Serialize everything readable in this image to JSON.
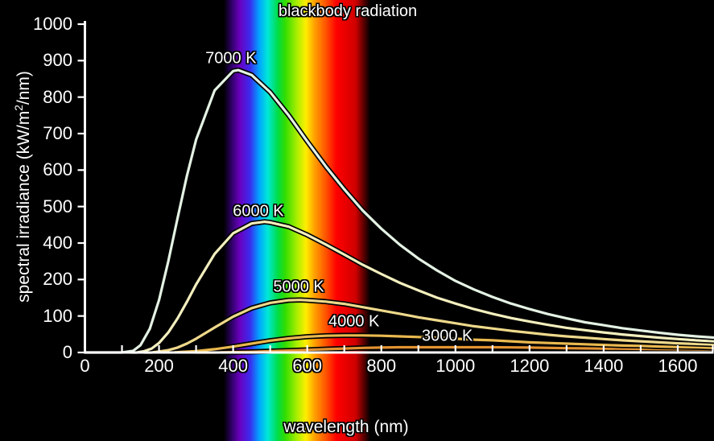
{
  "chart_data": {
    "type": "line",
    "title": "blackbody radiation",
    "xlabel": "wavelength (nm)",
    "ylabel_prefix": "spectral irradiance (kW/m",
    "ylabel_sup": "2",
    "ylabel_suffix": "/nm)",
    "axis_color": "#ffffff",
    "background_color": "#000000",
    "x_axis": {
      "min": 0,
      "max": 1700,
      "tick_step_nm": 100,
      "labeled_tick_step_nm": 200,
      "tick_labels": [
        "0",
        "200",
        "400",
        "600",
        "800",
        "1000",
        "1200",
        "1400",
        "1600"
      ]
    },
    "y_axis": {
      "min": 0,
      "max": 1000,
      "tick_labels_top_to_bottom": [
        "1000",
        "900",
        "800",
        "700",
        "600",
        "500",
        "400",
        "200",
        "100",
        "0"
      ]
    },
    "visible_spectrum_band": {
      "start_nm": 375,
      "end_nm": 770,
      "gradient_stops": [
        {
          "at": 0.0,
          "color": "#000000"
        },
        {
          "at": 0.05,
          "color": "#2b0060"
        },
        {
          "at": 0.11,
          "color": "#6a00c0"
        },
        {
          "at": 0.18,
          "color": "#3a2cee"
        },
        {
          "at": 0.24,
          "color": "#00a2ff"
        },
        {
          "at": 0.3,
          "color": "#00e8d8"
        },
        {
          "at": 0.37,
          "color": "#00dd44"
        },
        {
          "at": 0.42,
          "color": "#33dd00"
        },
        {
          "at": 0.5,
          "color": "#aaee00"
        },
        {
          "at": 0.56,
          "color": "#ffee00"
        },
        {
          "at": 0.62,
          "color": "#ffa000"
        },
        {
          "at": 0.7,
          "color": "#ff5000"
        },
        {
          "at": 0.77,
          "color": "#ff0000"
        },
        {
          "at": 0.9,
          "color": "#d00000"
        },
        {
          "at": 0.96,
          "color": "#500000"
        },
        {
          "at": 1.0,
          "color": "#000000"
        }
      ]
    },
    "series": [
      {
        "name": "3000 K",
        "temperature_K": 3000,
        "color": "#e29232",
        "peak_nm": 966,
        "peak_value": 16,
        "points": [
          [
            0,
            0
          ],
          [
            350,
            0
          ],
          [
            400,
            1
          ],
          [
            450,
            2
          ],
          [
            500,
            4
          ],
          [
            550,
            6
          ],
          [
            600,
            8
          ],
          [
            650,
            10
          ],
          [
            700,
            12
          ],
          [
            750,
            14
          ],
          [
            800,
            15
          ],
          [
            850,
            16
          ],
          [
            900,
            16
          ],
          [
            950,
            16
          ],
          [
            1000,
            16
          ],
          [
            1100,
            16
          ],
          [
            1200,
            15
          ],
          [
            1300,
            13
          ],
          [
            1400,
            12
          ],
          [
            1500,
            11
          ],
          [
            1600,
            10
          ],
          [
            1700,
            9
          ]
        ]
      },
      {
        "name": "4000 K",
        "temperature_K": 4000,
        "color": "#e9b94f",
        "peak_nm": 725,
        "peak_value": 52,
        "points": [
          [
            0,
            0
          ],
          [
            250,
            1
          ],
          [
            300,
            4
          ],
          [
            350,
            10
          ],
          [
            400,
            18
          ],
          [
            450,
            27
          ],
          [
            500,
            36
          ],
          [
            550,
            43
          ],
          [
            600,
            48
          ],
          [
            650,
            51
          ],
          [
            700,
            52
          ],
          [
            750,
            52
          ],
          [
            800,
            51
          ],
          [
            850,
            49
          ],
          [
            900,
            47
          ],
          [
            950,
            45
          ],
          [
            1000,
            42
          ],
          [
            1050,
            39
          ],
          [
            1100,
            37
          ],
          [
            1150,
            34
          ],
          [
            1200,
            31
          ],
          [
            1250,
            29
          ],
          [
            1300,
            27
          ],
          [
            1350,
            25
          ],
          [
            1400,
            23
          ],
          [
            1450,
            21
          ],
          [
            1500,
            20
          ],
          [
            1550,
            18
          ],
          [
            1600,
            17
          ],
          [
            1650,
            16
          ],
          [
            1700,
            14
          ]
        ]
      },
      {
        "name": "5000 K",
        "temperature_K": 5000,
        "color": "#eed98b",
        "peak_nm": 580,
        "peak_value": 160,
        "points": [
          [
            0,
            0
          ],
          [
            180,
            0
          ],
          [
            200,
            3
          ],
          [
            225,
            7
          ],
          [
            250,
            15
          ],
          [
            275,
            27
          ],
          [
            300,
            42
          ],
          [
            350,
            76
          ],
          [
            400,
            109
          ],
          [
            450,
            135
          ],
          [
            500,
            151
          ],
          [
            550,
            159
          ],
          [
            580,
            160
          ],
          [
            600,
            159
          ],
          [
            650,
            155
          ],
          [
            700,
            148
          ],
          [
            750,
            138
          ],
          [
            800,
            128
          ],
          [
            850,
            118
          ],
          [
            900,
            107
          ],
          [
            950,
            98
          ],
          [
            1000,
            89
          ],
          [
            1050,
            80
          ],
          [
            1100,
            73
          ],
          [
            1150,
            66
          ],
          [
            1200,
            60
          ],
          [
            1250,
            54
          ],
          [
            1300,
            49
          ],
          [
            1350,
            45
          ],
          [
            1400,
            41
          ],
          [
            1450,
            37
          ],
          [
            1500,
            34
          ],
          [
            1550,
            31
          ],
          [
            1600,
            28
          ],
          [
            1650,
            26
          ],
          [
            1700,
            24
          ]
        ]
      },
      {
        "name": "6000 K",
        "temperature_K": 6000,
        "color": "#f3efbe",
        "peak_nm": 483,
        "peak_value": 398,
        "points": [
          [
            0,
            0
          ],
          [
            140,
            0
          ],
          [
            160,
            4
          ],
          [
            180,
            12
          ],
          [
            200,
            29
          ],
          [
            225,
            61
          ],
          [
            250,
            104
          ],
          [
            275,
            154
          ],
          [
            300,
            207
          ],
          [
            350,
            300
          ],
          [
            400,
            363
          ],
          [
            450,
            393
          ],
          [
            485,
            398
          ],
          [
            500,
            396
          ],
          [
            550,
            383
          ],
          [
            600,
            358
          ],
          [
            650,
            329
          ],
          [
            700,
            298
          ],
          [
            750,
            267
          ],
          [
            800,
            239
          ],
          [
            850,
            212
          ],
          [
            900,
            189
          ],
          [
            950,
            167
          ],
          [
            1000,
            149
          ],
          [
            1050,
            132
          ],
          [
            1100,
            118
          ],
          [
            1150,
            105
          ],
          [
            1200,
            94
          ],
          [
            1250,
            84
          ],
          [
            1300,
            75
          ],
          [
            1350,
            68
          ],
          [
            1400,
            61
          ],
          [
            1450,
            55
          ],
          [
            1500,
            50
          ],
          [
            1550,
            45
          ],
          [
            1600,
            41
          ],
          [
            1650,
            37
          ],
          [
            1700,
            34
          ]
        ]
      },
      {
        "name": "7000 K",
        "temperature_K": 7000,
        "color": "#e4f2e4",
        "peak_nm": 414,
        "peak_value": 860,
        "points": [
          [
            0,
            0
          ],
          [
            100,
            0
          ],
          [
            130,
            5
          ],
          [
            150,
            22
          ],
          [
            175,
            72
          ],
          [
            200,
            160
          ],
          [
            225,
            278
          ],
          [
            250,
            409
          ],
          [
            275,
            537
          ],
          [
            300,
            648
          ],
          [
            350,
            798
          ],
          [
            400,
            857
          ],
          [
            414,
            860
          ],
          [
            450,
            845
          ],
          [
            500,
            793
          ],
          [
            550,
            722
          ],
          [
            600,
            643
          ],
          [
            650,
            567
          ],
          [
            700,
            497
          ],
          [
            750,
            432
          ],
          [
            800,
            377
          ],
          [
            850,
            328
          ],
          [
            900,
            286
          ],
          [
            950,
            250
          ],
          [
            1000,
            218
          ],
          [
            1050,
            192
          ],
          [
            1100,
            169
          ],
          [
            1150,
            149
          ],
          [
            1200,
            132
          ],
          [
            1250,
            117
          ],
          [
            1300,
            104
          ],
          [
            1350,
            92
          ],
          [
            1400,
            83
          ],
          [
            1450,
            74
          ],
          [
            1500,
            67
          ],
          [
            1550,
            60
          ],
          [
            1600,
            54
          ],
          [
            1650,
            49
          ],
          [
            1700,
            45
          ]
        ]
      }
    ],
    "curve_labels": [
      {
        "text": "7000 K",
        "x_nm": 394,
        "y_value": 895
      },
      {
        "text": "6000 K",
        "x_nm": 468,
        "y_value": 429
      },
      {
        "text": "5000 K",
        "x_nm": 577,
        "y_value": 199
      },
      {
        "text": "4000 K",
        "x_nm": 726,
        "y_value": 93
      },
      {
        "text": "3000 K",
        "x_nm": 978,
        "y_value": 49
      }
    ]
  }
}
